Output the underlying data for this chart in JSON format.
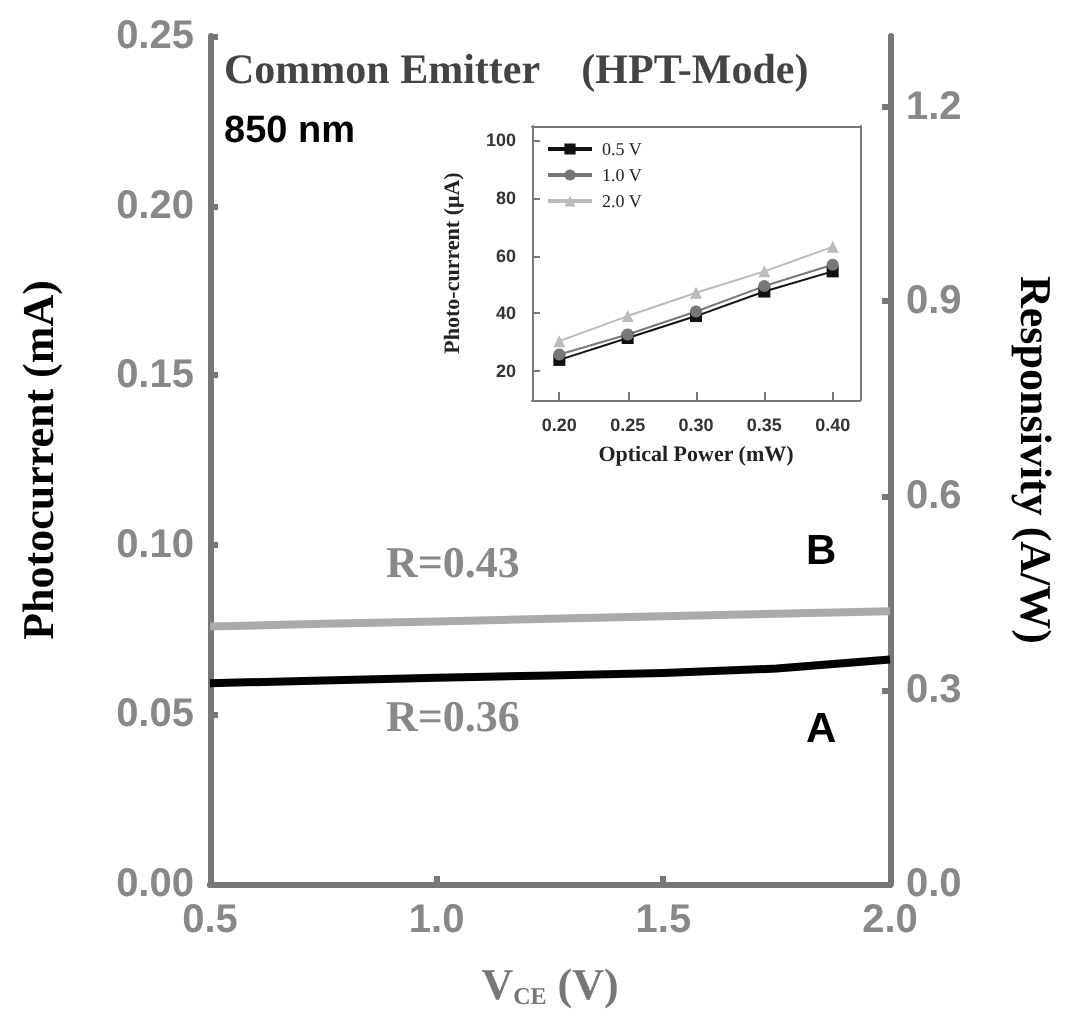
{
  "chart_data": [
    {
      "type": "line",
      "xlabel": "V$_{CE}$ (V)",
      "ylabel": "Photocurrent (mA)",
      "y2label": "Responsivity (A/W)",
      "x": [
        0.5,
        0.75,
        1.0,
        1.25,
        1.5,
        1.75,
        2.0
      ],
      "series": [
        {
          "name": "A",
          "color": "#000000",
          "values": [
            0.0592,
            0.06,
            0.0608,
            0.0615,
            0.0622,
            0.0635,
            0.0662
          ]
        },
        {
          "name": "B",
          "color": "#aaaaaa",
          "values": [
            0.0759,
            0.0767,
            0.0774,
            0.0782,
            0.0789,
            0.0797,
            0.0804
          ]
        }
      ],
      "xlim": [
        0.5,
        2.0
      ],
      "xticks": [
        0.5,
        {
          "value": 1,
          "label": "1.0"
        },
        1.5,
        {
          "value": 2,
          "label": "2.0"
        }
      ],
      "ylim": [
        0,
        0.25
      ],
      "yticks": [
        {
          "value": 0,
          "label": "0.00"
        },
        0.05,
        {
          "value": 0.1,
          "label": "0.10"
        },
        0.15,
        {
          "value": 0.2,
          "label": "0.20"
        },
        0.25
      ],
      "y2lim": [
        0,
        1.31
      ],
      "y2ticks": [
        {
          "value": 0,
          "label": "0.0"
        },
        0.3,
        0.6,
        0.9,
        1.2
      ],
      "marker": "none",
      "grid": false,
      "legend": false,
      "annotations": [
        "Common Emitter    (HPT-Mode)",
        "850 nm",
        "R=0.43",
        "R=0.36"
      ]
    },
    {
      "type": "line",
      "xlabel": "Optical Power (mW)",
      "ylabel": "Photo-current (μA)",
      "x": [
        0.2,
        0.25,
        0.3,
        0.35,
        0.4
      ],
      "series": [
        {
          "name": "0.5 V",
          "color": "#111111",
          "marker": "square",
          "values": [
            23.9,
            31.5,
            39.1,
            47.6,
            54.6
          ]
        },
        {
          "name": "1.0 V",
          "color": "#777777",
          "marker": "circle",
          "values": [
            25.8,
            32.7,
            40.7,
            49.5,
            56.9
          ]
        },
        {
          "name": "2.0 V",
          "color": "#bbbbbb",
          "marker": "triangle",
          "values": [
            30.4,
            39.1,
            47.2,
            54.6,
            63.1
          ]
        }
      ],
      "xlim": [
        0.18,
        0.42
      ],
      "xticks": [
        {
          "value": 0.2,
          "label": "0.20"
        },
        0.25,
        {
          "value": 0.3,
          "label": "0.30"
        },
        0.35,
        {
          "value": 0.4,
          "label": "0.40"
        }
      ],
      "ylim": [
        10,
        105
      ],
      "yticks": [
        20,
        40,
        60,
        80,
        100
      ],
      "grid": false,
      "legend": "top left"
    }
  ]
}
